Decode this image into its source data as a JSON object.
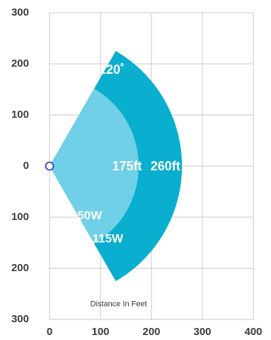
{
  "chart_data": {
    "type": "area",
    "xlabel": "Distance In Feet",
    "ylabel": "",
    "xlim": [
      0,
      400
    ],
    "ylim": [
      -300,
      300
    ],
    "x_ticks": [
      "0",
      "100",
      "200",
      "300",
      "400"
    ],
    "y_ticks": [
      "300",
      "200",
      "100",
      "0",
      "100",
      "200",
      "300"
    ],
    "grid": true,
    "beam_angle_deg": 120,
    "beam_angle_label": "120˚",
    "origin": [
      0,
      0
    ],
    "series": [
      {
        "name": "115W",
        "range_ft": 260,
        "range_label": "260ft",
        "color": "#0aaecf"
      },
      {
        "name": "50W",
        "range_ft": 175,
        "range_label": "175ft",
        "color": "#6fd0e8"
      }
    ]
  }
}
